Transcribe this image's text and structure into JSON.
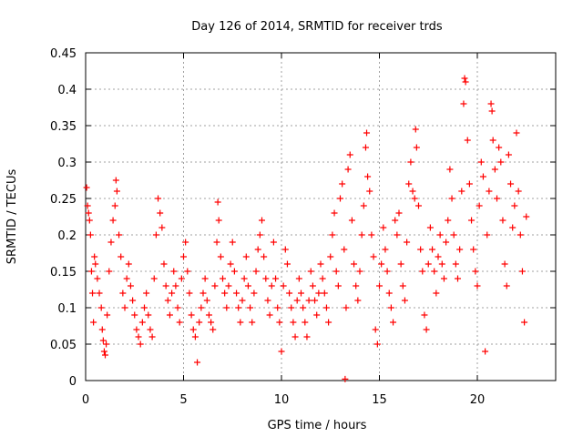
{
  "chart_data": {
    "type": "scatter",
    "title": "Day 126 of 2014, SRMTID for receiver trds",
    "xlabel": "GPS time / hours",
    "ylabel": "SRMTID / TECUs",
    "xlim": [
      0,
      24
    ],
    "ylim": [
      0,
      0.45
    ],
    "xticks": [
      0,
      5,
      10,
      15,
      20
    ],
    "xtick_labels": [
      "0",
      "5",
      "10",
      "15",
      "20"
    ],
    "yticks": [
      0,
      0.05,
      0.1,
      0.15,
      0.2,
      0.25,
      0.3,
      0.35,
      0.4,
      0.45
    ],
    "ytick_labels": [
      "0",
      "0.05",
      "0.1",
      "0.15",
      "0.2",
      "0.25",
      "0.3",
      "0.35",
      "0.4",
      "0.45"
    ],
    "grid": true,
    "marker": "+",
    "color": "#ff0000",
    "series": [
      {
        "name": "SRMTID",
        "points": [
          [
            0.05,
            0.265
          ],
          [
            0.1,
            0.24
          ],
          [
            0.15,
            0.23
          ],
          [
            0.2,
            0.22
          ],
          [
            0.25,
            0.2
          ],
          [
            0.3,
            0.15
          ],
          [
            0.35,
            0.12
          ],
          [
            0.4,
            0.08
          ],
          [
            0.45,
            0.17
          ],
          [
            0.5,
            0.16
          ],
          [
            0.6,
            0.14
          ],
          [
            0.7,
            0.12
          ],
          [
            0.8,
            0.1
          ],
          [
            0.85,
            0.07
          ],
          [
            0.9,
            0.055
          ],
          [
            0.95,
            0.04
          ],
          [
            1.0,
            0.035
          ],
          [
            1.05,
            0.05
          ],
          [
            1.1,
            0.09
          ],
          [
            1.2,
            0.15
          ],
          [
            1.3,
            0.19
          ],
          [
            1.4,
            0.22
          ],
          [
            1.5,
            0.24
          ],
          [
            1.55,
            0.275
          ],
          [
            1.6,
            0.26
          ],
          [
            1.7,
            0.2
          ],
          [
            1.8,
            0.17
          ],
          [
            1.9,
            0.12
          ],
          [
            2.0,
            0.1
          ],
          [
            2.1,
            0.14
          ],
          [
            2.2,
            0.16
          ],
          [
            2.3,
            0.13
          ],
          [
            2.4,
            0.11
          ],
          [
            2.5,
            0.09
          ],
          [
            2.6,
            0.07
          ],
          [
            2.7,
            0.06
          ],
          [
            2.8,
            0.05
          ],
          [
            2.9,
            0.08
          ],
          [
            3.0,
            0.1
          ],
          [
            3.1,
            0.12
          ],
          [
            3.2,
            0.09
          ],
          [
            3.3,
            0.07
          ],
          [
            3.4,
            0.06
          ],
          [
            3.5,
            0.14
          ],
          [
            3.6,
            0.2
          ],
          [
            3.7,
            0.25
          ],
          [
            3.8,
            0.23
          ],
          [
            3.9,
            0.21
          ],
          [
            4.0,
            0.16
          ],
          [
            4.1,
            0.13
          ],
          [
            4.2,
            0.11
          ],
          [
            4.3,
            0.09
          ],
          [
            4.4,
            0.12
          ],
          [
            4.5,
            0.15
          ],
          [
            4.6,
            0.13
          ],
          [
            4.7,
            0.1
          ],
          [
            4.8,
            0.08
          ],
          [
            4.9,
            0.14
          ],
          [
            5.0,
            0.17
          ],
          [
            5.1,
            0.19
          ],
          [
            5.2,
            0.15
          ],
          [
            5.3,
            0.12
          ],
          [
            5.4,
            0.09
          ],
          [
            5.5,
            0.07
          ],
          [
            5.6,
            0.06
          ],
          [
            5.7,
            0.025
          ],
          [
            5.8,
            0.08
          ],
          [
            5.9,
            0.1
          ],
          [
            6.0,
            0.12
          ],
          [
            6.1,
            0.14
          ],
          [
            6.2,
            0.11
          ],
          [
            6.3,
            0.09
          ],
          [
            6.4,
            0.08
          ],
          [
            6.5,
            0.07
          ],
          [
            6.6,
            0.13
          ],
          [
            6.7,
            0.19
          ],
          [
            6.75,
            0.245
          ],
          [
            6.8,
            0.22
          ],
          [
            6.9,
            0.17
          ],
          [
            7.0,
            0.14
          ],
          [
            7.1,
            0.12
          ],
          [
            7.2,
            0.1
          ],
          [
            7.3,
            0.13
          ],
          [
            7.4,
            0.16
          ],
          [
            7.5,
            0.19
          ],
          [
            7.6,
            0.15
          ],
          [
            7.7,
            0.12
          ],
          [
            7.8,
            0.1
          ],
          [
            7.9,
            0.08
          ],
          [
            8.0,
            0.11
          ],
          [
            8.1,
            0.14
          ],
          [
            8.2,
            0.17
          ],
          [
            8.3,
            0.13
          ],
          [
            8.4,
            0.1
          ],
          [
            8.5,
            0.08
          ],
          [
            8.6,
            0.12
          ],
          [
            8.7,
            0.15
          ],
          [
            8.8,
            0.18
          ],
          [
            8.9,
            0.2
          ],
          [
            9.0,
            0.22
          ],
          [
            9.1,
            0.17
          ],
          [
            9.2,
            0.14
          ],
          [
            9.3,
            0.11
          ],
          [
            9.4,
            0.09
          ],
          [
            9.5,
            0.13
          ],
          [
            9.6,
            0.19
          ],
          [
            9.7,
            0.14
          ],
          [
            9.8,
            0.1
          ],
          [
            9.9,
            0.08
          ],
          [
            10.0,
            0.04
          ],
          [
            10.1,
            0.13
          ],
          [
            10.2,
            0.18
          ],
          [
            10.3,
            0.16
          ],
          [
            10.4,
            0.12
          ],
          [
            10.5,
            0.1
          ],
          [
            10.6,
            0.08
          ],
          [
            10.7,
            0.06
          ],
          [
            10.8,
            0.11
          ],
          [
            10.9,
            0.14
          ],
          [
            11.0,
            0.12
          ],
          [
            11.1,
            0.1
          ],
          [
            11.2,
            0.08
          ],
          [
            11.3,
            0.06
          ],
          [
            11.4,
            0.11
          ],
          [
            11.5,
            0.15
          ],
          [
            11.6,
            0.13
          ],
          [
            11.7,
            0.11
          ],
          [
            11.8,
            0.09
          ],
          [
            11.9,
            0.12
          ],
          [
            12.0,
            0.16
          ],
          [
            12.1,
            0.14
          ],
          [
            12.2,
            0.12
          ],
          [
            12.3,
            0.1
          ],
          [
            12.4,
            0.08
          ],
          [
            12.5,
            0.17
          ],
          [
            12.6,
            0.2
          ],
          [
            12.7,
            0.23
          ],
          [
            12.8,
            0.15
          ],
          [
            12.9,
            0.13
          ],
          [
            13.0,
            0.25
          ],
          [
            13.1,
            0.27
          ],
          [
            13.2,
            0.18
          ],
          [
            13.25,
            0.002
          ],
          [
            13.3,
            0.1
          ],
          [
            13.4,
            0.29
          ],
          [
            13.5,
            0.31
          ],
          [
            13.6,
            0.22
          ],
          [
            13.7,
            0.16
          ],
          [
            13.8,
            0.13
          ],
          [
            13.9,
            0.11
          ],
          [
            14.0,
            0.15
          ],
          [
            14.1,
            0.2
          ],
          [
            14.2,
            0.24
          ],
          [
            14.3,
            0.32
          ],
          [
            14.35,
            0.34
          ],
          [
            14.4,
            0.28
          ],
          [
            14.5,
            0.26
          ],
          [
            14.6,
            0.2
          ],
          [
            14.7,
            0.17
          ],
          [
            14.8,
            0.07
          ],
          [
            14.9,
            0.05
          ],
          [
            15.0,
            0.13
          ],
          [
            15.1,
            0.16
          ],
          [
            15.2,
            0.21
          ],
          [
            15.3,
            0.18
          ],
          [
            15.4,
            0.15
          ],
          [
            15.5,
            0.12
          ],
          [
            15.6,
            0.1
          ],
          [
            15.7,
            0.08
          ],
          [
            15.8,
            0.22
          ],
          [
            15.9,
            0.2
          ],
          [
            16.0,
            0.23
          ],
          [
            16.1,
            0.16
          ],
          [
            16.2,
            0.13
          ],
          [
            16.3,
            0.11
          ],
          [
            16.4,
            0.19
          ],
          [
            16.5,
            0.27
          ],
          [
            16.6,
            0.3
          ],
          [
            16.7,
            0.26
          ],
          [
            16.8,
            0.25
          ],
          [
            16.85,
            0.345
          ],
          [
            16.9,
            0.32
          ],
          [
            17.0,
            0.24
          ],
          [
            17.1,
            0.18
          ],
          [
            17.2,
            0.15
          ],
          [
            17.3,
            0.09
          ],
          [
            17.4,
            0.07
          ],
          [
            17.5,
            0.16
          ],
          [
            17.6,
            0.21
          ],
          [
            17.7,
            0.18
          ],
          [
            17.8,
            0.15
          ],
          [
            17.9,
            0.12
          ],
          [
            18.0,
            0.17
          ],
          [
            18.1,
            0.2
          ],
          [
            18.2,
            0.16
          ],
          [
            18.3,
            0.14
          ],
          [
            18.4,
            0.19
          ],
          [
            18.5,
            0.22
          ],
          [
            18.6,
            0.29
          ],
          [
            18.7,
            0.25
          ],
          [
            18.8,
            0.2
          ],
          [
            18.9,
            0.16
          ],
          [
            19.0,
            0.14
          ],
          [
            19.1,
            0.18
          ],
          [
            19.2,
            0.26
          ],
          [
            19.3,
            0.38
          ],
          [
            19.35,
            0.415
          ],
          [
            19.4,
            0.41
          ],
          [
            19.5,
            0.33
          ],
          [
            19.6,
            0.27
          ],
          [
            19.7,
            0.22
          ],
          [
            19.8,
            0.18
          ],
          [
            19.9,
            0.15
          ],
          [
            20.0,
            0.13
          ],
          [
            20.1,
            0.24
          ],
          [
            20.2,
            0.3
          ],
          [
            20.3,
            0.28
          ],
          [
            20.4,
            0.04
          ],
          [
            20.5,
            0.2
          ],
          [
            20.6,
            0.26
          ],
          [
            20.7,
            0.38
          ],
          [
            20.75,
            0.37
          ],
          [
            20.8,
            0.33
          ],
          [
            20.9,
            0.29
          ],
          [
            21.0,
            0.25
          ],
          [
            21.1,
            0.32
          ],
          [
            21.2,
            0.3
          ],
          [
            21.3,
            0.22
          ],
          [
            21.4,
            0.16
          ],
          [
            21.5,
            0.13
          ],
          [
            21.6,
            0.31
          ],
          [
            21.7,
            0.27
          ],
          [
            21.8,
            0.21
          ],
          [
            21.9,
            0.24
          ],
          [
            22.0,
            0.34
          ],
          [
            22.1,
            0.26
          ],
          [
            22.2,
            0.2
          ],
          [
            22.3,
            0.15
          ],
          [
            22.4,
            0.08
          ],
          [
            22.5,
            0.225
          ]
        ]
      }
    ]
  }
}
